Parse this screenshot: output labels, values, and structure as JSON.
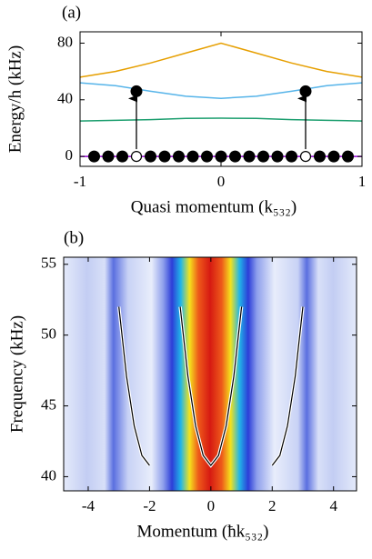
{
  "chart_data": [
    {
      "type": "line",
      "panel_label": "(a)",
      "x_label": "Quasi momentum (k₅₃₂)",
      "y_label": "Energy/h (kHz)",
      "x": [
        -1,
        -0.75,
        -0.5,
        -0.25,
        0,
        0.25,
        0.5,
        0.75,
        1
      ],
      "series": [
        {
          "color": "#e69f00",
          "values": [
            56,
            60,
            66,
            73,
            80,
            73,
            66,
            60,
            56
          ]
        },
        {
          "color": "#56b4e9",
          "values": [
            52,
            50,
            46,
            42.5,
            41,
            42.5,
            46,
            50,
            52
          ]
        },
        {
          "color": "#1b9e6e",
          "values": [
            25,
            25.5,
            26,
            26.8,
            27,
            26.8,
            26,
            25.5,
            25
          ]
        },
        {
          "color": "#9400d3",
          "values": [
            0,
            0,
            0,
            0,
            0,
            0,
            0,
            0,
            0
          ]
        }
      ],
      "points": {
        "x": [
          -0.9,
          -0.8,
          -0.7,
          -0.5,
          -0.4,
          -0.3,
          -0.2,
          -0.1,
          0,
          0.1,
          0.2,
          0.3,
          0.4,
          0.5,
          0.7,
          0.8,
          0.9,
          -0.6,
          0.6
        ],
        "y": [
          0,
          0,
          0,
          0,
          0,
          0,
          0,
          0,
          0,
          0,
          0,
          0,
          0,
          0,
          0,
          0,
          0,
          46,
          46
        ]
      },
      "open_points": {
        "x": [
          -0.6,
          0.6
        ],
        "y": [
          0,
          0
        ]
      },
      "xlim": [
        -1,
        1
      ],
      "ylim": [
        -7,
        88
      ],
      "xticks": [
        -1,
        0,
        1
      ],
      "yticks": [
        0,
        40,
        80
      ]
    },
    {
      "type": "heatmap",
      "panel_label": "(b)",
      "x_label": "Momentum (ħk₅₃₂)",
      "y_label": "Frequency (kHz)",
      "curves": [
        {
          "x": [
            -3,
            -2.75,
            -2.5,
            -2.25,
            -2
          ],
          "values": [
            52,
            47.1,
            43.6,
            41.5,
            40.8
          ]
        },
        {
          "x": [
            -1,
            -0.75,
            -0.5,
            -0.25,
            0,
            0.25,
            0.5,
            0.75,
            1
          ],
          "values": [
            52,
            47.1,
            43.6,
            41.5,
            40.8,
            41.5,
            43.6,
            47.1,
            52
          ]
        },
        {
          "x": [
            2,
            2.25,
            2.5,
            2.75,
            3
          ],
          "values": [
            40.8,
            41.5,
            43.6,
            47.1,
            52
          ]
        }
      ],
      "xlim": [
        -4.8,
        4.75
      ],
      "ylim": [
        39,
        55.5
      ],
      "xticks": [
        -4,
        -2,
        0,
        2,
        4
      ],
      "yticks": [
        40,
        45,
        50,
        55
      ]
    }
  ]
}
